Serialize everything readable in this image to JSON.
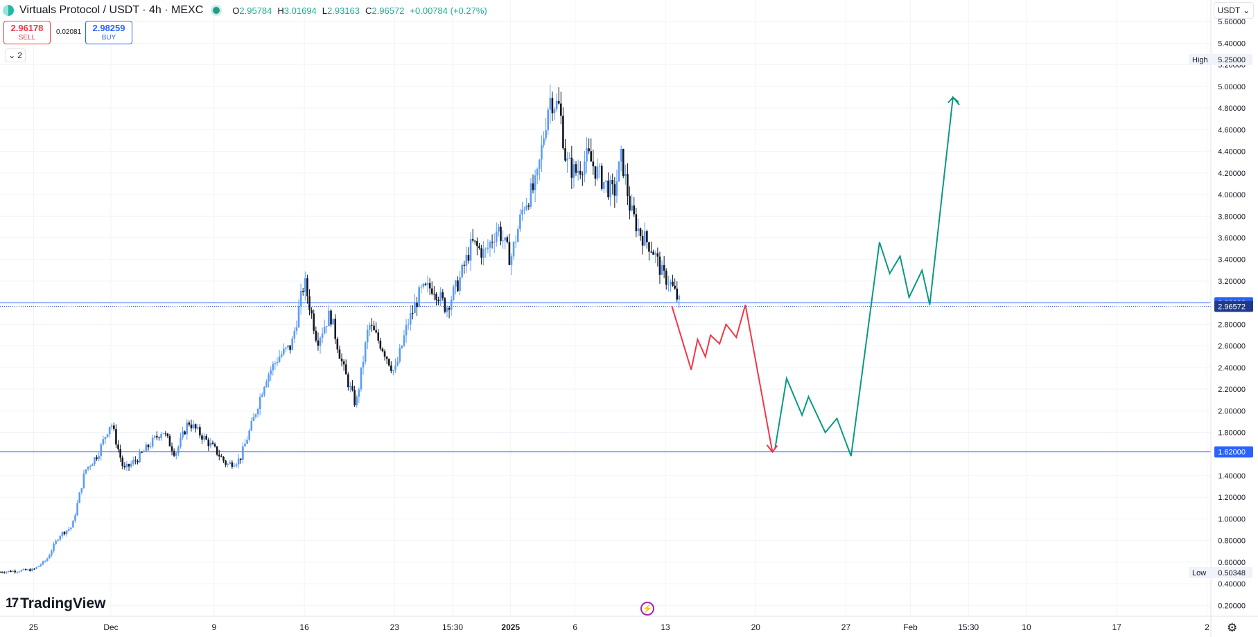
{
  "header": {
    "symbol": "Virtuals Protocol / USDT · 4h · MEXC",
    "ohlc": [
      {
        "k": "O",
        "v": "2.95784"
      },
      {
        "k": "H",
        "v": "3.01694"
      },
      {
        "k": "L",
        "v": "2.93163"
      },
      {
        "k": "C",
        "v": "2.96572"
      },
      {
        "k": "",
        "v": "+0.00784 (+0.27%)"
      }
    ]
  },
  "trade": {
    "sell_price": "2.96178",
    "sell_label": "SELL",
    "buy_price": "2.98259",
    "buy_label": "BUY",
    "spread": "0.02081"
  },
  "layers": {
    "count": "2"
  },
  "currency": "USDT",
  "branding": "TradingView",
  "colors": {
    "up": "#5b9cf6",
    "down": "#131722",
    "line": "#2962ff",
    "red_path": "#f23645",
    "green_path": "#089981",
    "axis_text": "#131722",
    "grid": "#f0f3fa"
  },
  "chart_data": {
    "type": "candlestick",
    "symbol": "Virtuals Protocol / USDT",
    "interval": "4h",
    "exchange": "MEXC",
    "ylim": [
      0.1,
      5.8
    ],
    "y_ticks": [
      0.2,
      0.4,
      0.6,
      0.8,
      1.0,
      1.2,
      1.4,
      1.6,
      1.8,
      2.0,
      2.2,
      2.4,
      2.6,
      2.8,
      3.2,
      3.4,
      3.6,
      3.8,
      4.0,
      4.2,
      4.4,
      4.6,
      4.8,
      5.0,
      5.2,
      5.4,
      5.6
    ],
    "x_ticks": [
      {
        "label": "25",
        "day": 0
      },
      {
        "label": "Dec",
        "day": 6
      },
      {
        "label": "9",
        "day": 14
      },
      {
        "label": "16",
        "day": 21
      },
      {
        "label": "23",
        "day": 28
      },
      {
        "label": "15:30",
        "day": 32.5
      },
      {
        "label": "2025",
        "day": 37
      },
      {
        "label": "6",
        "day": 42
      },
      {
        "label": "13",
        "day": 49
      },
      {
        "label": "20",
        "day": 56
      },
      {
        "label": "27",
        "day": 63
      },
      {
        "label": "Feb",
        "day": 68
      },
      {
        "label": "15:30",
        "day": 72.5
      },
      {
        "label": "10",
        "day": 77
      },
      {
        "label": "17",
        "day": 84
      },
      {
        "label": "2",
        "day": 91
      }
    ],
    "x_range_days": [
      -2.6,
      91.3
    ],
    "high": {
      "label": "High",
      "value": "5.25000"
    },
    "low": {
      "label": "Low",
      "value": "0.50348"
    },
    "last_price": "2.96572",
    "horizontal_lines": [
      {
        "value": 3.0,
        "label": "3.00000"
      },
      {
        "value": 1.62,
        "label": "1.62000"
      }
    ],
    "price_series_anchors": [
      {
        "day": -2.6,
        "price": 0.51
      },
      {
        "day": 0,
        "price": 0.53
      },
      {
        "day": 1,
        "price": 0.62
      },
      {
        "day": 2,
        "price": 0.85
      },
      {
        "day": 3,
        "price": 0.93
      },
      {
        "day": 4,
        "price": 1.45
      },
      {
        "day": 5,
        "price": 1.6
      },
      {
        "day": 6,
        "price": 1.9
      },
      {
        "day": 7,
        "price": 1.45
      },
      {
        "day": 8,
        "price": 1.55
      },
      {
        "day": 10,
        "price": 1.82
      },
      {
        "day": 11,
        "price": 1.6
      },
      {
        "day": 12,
        "price": 1.9
      },
      {
        "day": 14,
        "price": 1.65
      },
      {
        "day": 15,
        "price": 1.5
      },
      {
        "day": 16,
        "price": 1.55
      },
      {
        "day": 17,
        "price": 1.9
      },
      {
        "day": 18,
        "price": 2.3
      },
      {
        "day": 19,
        "price": 2.5
      },
      {
        "day": 20,
        "price": 2.6
      },
      {
        "day": 21,
        "price": 3.2
      },
      {
        "day": 22,
        "price": 2.65
      },
      {
        "day": 23,
        "price": 2.9
      },
      {
        "day": 24,
        "price": 2.4
      },
      {
        "day": 25,
        "price": 2.05
      },
      {
        "day": 26,
        "price": 2.8
      },
      {
        "day": 27,
        "price": 2.6
      },
      {
        "day": 28,
        "price": 2.35
      },
      {
        "day": 29,
        "price": 2.8
      },
      {
        "day": 30,
        "price": 3.1
      },
      {
        "day": 31,
        "price": 3.15
      },
      {
        "day": 32,
        "price": 2.95
      },
      {
        "day": 33,
        "price": 3.2
      },
      {
        "day": 34,
        "price": 3.55
      },
      {
        "day": 35,
        "price": 3.45
      },
      {
        "day": 36,
        "price": 3.7
      },
      {
        "day": 37,
        "price": 3.4
      },
      {
        "day": 38,
        "price": 3.9
      },
      {
        "day": 39,
        "price": 4.1
      },
      {
        "day": 40,
        "price": 4.9
      },
      {
        "day": 40.8,
        "price": 4.8
      },
      {
        "day": 41.3,
        "price": 4.3
      },
      {
        "day": 42,
        "price": 4.2
      },
      {
        "day": 43,
        "price": 4.35
      },
      {
        "day": 44,
        "price": 4.15
      },
      {
        "day": 45,
        "price": 4.0
      },
      {
        "day": 45.6,
        "price": 4.35
      },
      {
        "day": 46.3,
        "price": 3.85
      },
      {
        "day": 47,
        "price": 3.65
      },
      {
        "day": 48,
        "price": 3.5
      },
      {
        "day": 48.8,
        "price": 3.25
      },
      {
        "day": 49.3,
        "price": 3.2
      },
      {
        "day": 50.2,
        "price": 2.97
      }
    ],
    "projection_red": [
      {
        "day": 49.5,
        "price": 2.97
      },
      {
        "day": 51,
        "price": 2.38
      },
      {
        "day": 51.5,
        "price": 2.66
      },
      {
        "day": 52.1,
        "price": 2.5
      },
      {
        "day": 52.5,
        "price": 2.7
      },
      {
        "day": 53.2,
        "price": 2.62
      },
      {
        "day": 53.7,
        "price": 2.8
      },
      {
        "day": 54.5,
        "price": 2.68
      },
      {
        "day": 55.2,
        "price": 2.98
      },
      {
        "day": 57.3,
        "price": 1.62
      }
    ],
    "projection_green": [
      {
        "day": 57.5,
        "price": 1.65
      },
      {
        "day": 58.4,
        "price": 2.3
      },
      {
        "day": 59.6,
        "price": 1.96
      },
      {
        "day": 60.1,
        "price": 2.13
      },
      {
        "day": 61.4,
        "price": 1.8
      },
      {
        "day": 62.3,
        "price": 1.93
      },
      {
        "day": 63.4,
        "price": 1.58
      },
      {
        "day": 65.6,
        "price": 3.56
      },
      {
        "day": 66.4,
        "price": 3.27
      },
      {
        "day": 67.2,
        "price": 3.43
      },
      {
        "day": 67.9,
        "price": 3.05
      },
      {
        "day": 68.9,
        "price": 3.3
      },
      {
        "day": 69.5,
        "price": 2.98
      },
      {
        "day": 71.3,
        "price": 4.9
      },
      {
        "day": 71.8,
        "price": 4.83
      }
    ]
  }
}
